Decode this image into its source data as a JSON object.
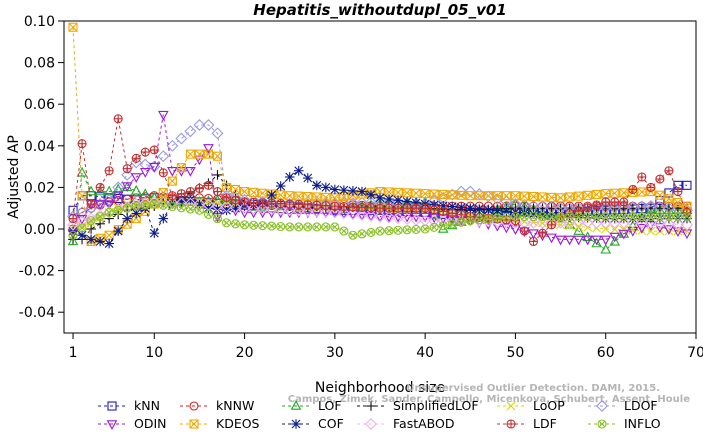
{
  "chart_data": {
    "type": "line",
    "title": "Hepatitis_withoutdupl_05_v01",
    "xlabel": "Neighborhood size",
    "ylabel": "Adjusted AP",
    "xlim": [
      0,
      70
    ],
    "ylim": [
      -0.05,
      0.1
    ],
    "xticks": [
      1,
      10,
      20,
      30,
      40,
      50,
      60,
      70
    ],
    "yticks": [
      -0.04,
      -0.02,
      0.0,
      0.02,
      0.04,
      0.06,
      0.08,
      0.1
    ],
    "ytick_labels": [
      "-0.04",
      "-0.02",
      "0.00",
      "0.02",
      "0.04",
      "0.06",
      "0.08",
      "0.10"
    ],
    "grid": false,
    "legend_position": "bottom",
    "watermark": {
      "line1": "Unsupervised Outlier Detection. DAMI, 2015.",
      "line2": "Campos, Zimek, Sander, Campello, Micenkova, Schubert, Assent, Houle"
    },
    "series": [
      {
        "name": "kNN",
        "color": "#1a1acc",
        "marker": "square",
        "x": [
          1,
          2,
          3,
          5,
          8,
          10,
          12,
          15,
          18,
          20,
          25,
          30,
          35,
          40,
          42,
          45,
          50,
          55,
          60,
          65,
          68,
          69
        ],
        "y": [
          0.009,
          0.016,
          0.016,
          0.015,
          0.014,
          0.015,
          0.014,
          0.013,
          0.012,
          0.012,
          0.011,
          0.009,
          0.009,
          0.008,
          0.007,
          0.008,
          0.008,
          0.008,
          0.009,
          0.01,
          0.021,
          0.021
        ]
      },
      {
        "name": "kNNW",
        "color": "#d42020",
        "marker": "circle",
        "x": [
          1,
          2,
          3,
          5,
          8,
          10,
          12,
          15,
          18,
          20,
          25,
          30,
          35,
          40,
          45,
          50,
          55,
          60,
          65,
          69
        ],
        "y": [
          0.0,
          0.008,
          0.01,
          0.013,
          0.015,
          0.016,
          0.015,
          0.015,
          0.014,
          0.013,
          0.012,
          0.012,
          0.011,
          0.011,
          0.011,
          0.011,
          0.011,
          0.011,
          0.011,
          0.011
        ]
      },
      {
        "name": "LOF",
        "color": "#22aa22",
        "marker": "triangle",
        "x": [
          1,
          2,
          3,
          5,
          7,
          10,
          12,
          15,
          18,
          20,
          25,
          30,
          35,
          40,
          42,
          45,
          50,
          55,
          60,
          65,
          69
        ],
        "y": [
          -0.006,
          0.027,
          0.018,
          0.018,
          0.02,
          0.015,
          0.013,
          0.013,
          0.014,
          0.011,
          0.009,
          0.009,
          0.012,
          0.013,
          0.0,
          0.005,
          0.012,
          0.005,
          -0.01,
          0.009,
          0.009
        ]
      },
      {
        "name": "SimplifiedLOF",
        "color": "#111111",
        "marker": "plus",
        "x": [
          1,
          2,
          3,
          5,
          7,
          10,
          13,
          16,
          17,
          18,
          20,
          25,
          30,
          35,
          40,
          45,
          50,
          55,
          60,
          65,
          69
        ],
        "y": [
          -0.005,
          -0.005,
          0.0,
          0.005,
          0.009,
          0.011,
          0.015,
          0.022,
          0.026,
          0.021,
          0.013,
          0.011,
          0.01,
          0.011,
          0.01,
          0.009,
          0.01,
          0.01,
          0.01,
          0.01,
          0.01
        ]
      },
      {
        "name": "LoOP",
        "color": "#d8d800",
        "marker": "x",
        "x": [
          1,
          3,
          5,
          7,
          10,
          15,
          18,
          20,
          25,
          30,
          35,
          40,
          45,
          50,
          55,
          60,
          65,
          69
        ],
        "y": [
          0.0,
          0.003,
          0.008,
          0.012,
          0.013,
          0.013,
          0.012,
          0.011,
          0.01,
          0.01,
          0.01,
          0.009,
          0.006,
          0.004,
          0.002,
          0.0,
          -0.001,
          -0.001
        ]
      },
      {
        "name": "LDOF",
        "color": "#9a9ae8",
        "marker": "diamond",
        "x": [
          1,
          3,
          5,
          8,
          10,
          12,
          14,
          15,
          16,
          17,
          18,
          20,
          25,
          30,
          35,
          40,
          44,
          45,
          50,
          55,
          60,
          65,
          69
        ],
        "y": [
          0.006,
          0.01,
          0.014,
          0.032,
          0.03,
          0.04,
          0.047,
          0.05,
          0.05,
          0.046,
          0.016,
          0.014,
          0.012,
          0.012,
          0.013,
          0.012,
          0.018,
          0.018,
          0.012,
          0.01,
          0.01,
          0.011,
          0.009
        ]
      },
      {
        "name": "ODIN",
        "color": "#9a18d8",
        "marker": "triangle-down",
        "x": [
          1,
          3,
          5,
          8,
          10,
          11,
          12,
          14,
          16,
          17,
          18,
          20,
          25,
          30,
          35,
          40,
          45,
          50,
          55,
          60,
          65,
          69
        ],
        "y": [
          -0.002,
          0.012,
          0.012,
          0.025,
          0.03,
          0.055,
          0.028,
          0.028,
          0.039,
          0.006,
          0.01,
          0.008,
          0.008,
          0.008,
          0.006,
          0.006,
          0.004,
          0.0,
          -0.005,
          -0.005,
          0.002,
          -0.002
        ]
      },
      {
        "name": "KDEOS",
        "color": "#f0a800",
        "marker": "square-x",
        "x": [
          1,
          2,
          3,
          5,
          8,
          10,
          12,
          14,
          16,
          17,
          18,
          20,
          25,
          30,
          35,
          40,
          45,
          50,
          55,
          60,
          65,
          69
        ],
        "y": [
          0.097,
          0.016,
          -0.006,
          -0.003,
          0.005,
          0.012,
          0.023,
          0.036,
          0.036,
          0.035,
          0.02,
          0.018,
          0.016,
          0.015,
          0.018,
          0.017,
          0.016,
          0.016,
          0.015,
          0.017,
          0.018,
          0.011
        ]
      },
      {
        "name": "COF",
        "color": "#0a1a8a",
        "marker": "star",
        "x": [
          1,
          3,
          5,
          7,
          9,
          10,
          12,
          14,
          16,
          18,
          20,
          22,
          25,
          26,
          28,
          30,
          33,
          35,
          40,
          45,
          50,
          55,
          60,
          65,
          69
        ],
        "y": [
          -0.001,
          -0.005,
          -0.007,
          0.005,
          0.01,
          -0.002,
          0.012,
          0.014,
          0.01,
          0.009,
          0.011,
          0.012,
          0.025,
          0.028,
          0.021,
          0.019,
          0.018,
          0.015,
          0.012,
          0.01,
          0.008,
          0.006,
          0.005,
          0.005,
          0.005
        ]
      },
      {
        "name": "FastABOD",
        "color": "#f0b0f0",
        "marker": "diamond",
        "x": [
          1,
          3,
          5,
          8,
          10,
          15,
          20,
          25,
          30,
          35,
          40,
          45,
          50,
          55,
          60,
          65,
          69
        ],
        "y": [
          0.002,
          0.005,
          0.008,
          0.012,
          0.013,
          0.012,
          0.01,
          0.009,
          0.008,
          0.006,
          0.004,
          0.004,
          0.003,
          0.003,
          0.003,
          0.003,
          0.002
        ]
      },
      {
        "name": "LDF",
        "color": "#c03030",
        "marker": "circle-plus",
        "x": [
          1,
          2,
          3,
          5,
          6,
          7,
          8,
          9,
          10,
          12,
          14,
          16,
          18,
          20,
          25,
          30,
          35,
          40,
          45,
          50,
          52,
          55,
          60,
          62,
          64,
          65,
          67,
          69
        ],
        "y": [
          0.005,
          0.041,
          0.012,
          0.028,
          0.053,
          0.029,
          0.034,
          0.037,
          0.038,
          0.016,
          0.018,
          0.021,
          0.015,
          0.013,
          0.012,
          0.011,
          0.01,
          0.01,
          0.006,
          0.004,
          -0.006,
          0.006,
          0.013,
          0.013,
          0.025,
          0.02,
          0.028,
          0.008
        ]
      },
      {
        "name": "INFLO",
        "color": "#88c022",
        "marker": "circle-x",
        "x": [
          1,
          3,
          5,
          8,
          10,
          15,
          18,
          20,
          25,
          30,
          32,
          35,
          40,
          45,
          50,
          55,
          60,
          65,
          69
        ],
        "y": [
          -0.003,
          0.004,
          0.008,
          0.011,
          0.012,
          0.009,
          0.003,
          0.002,
          0.001,
          0.001,
          -0.003,
          -0.001,
          0.0,
          0.004,
          0.006,
          0.006,
          0.006,
          0.006,
          0.006
        ]
      }
    ]
  }
}
